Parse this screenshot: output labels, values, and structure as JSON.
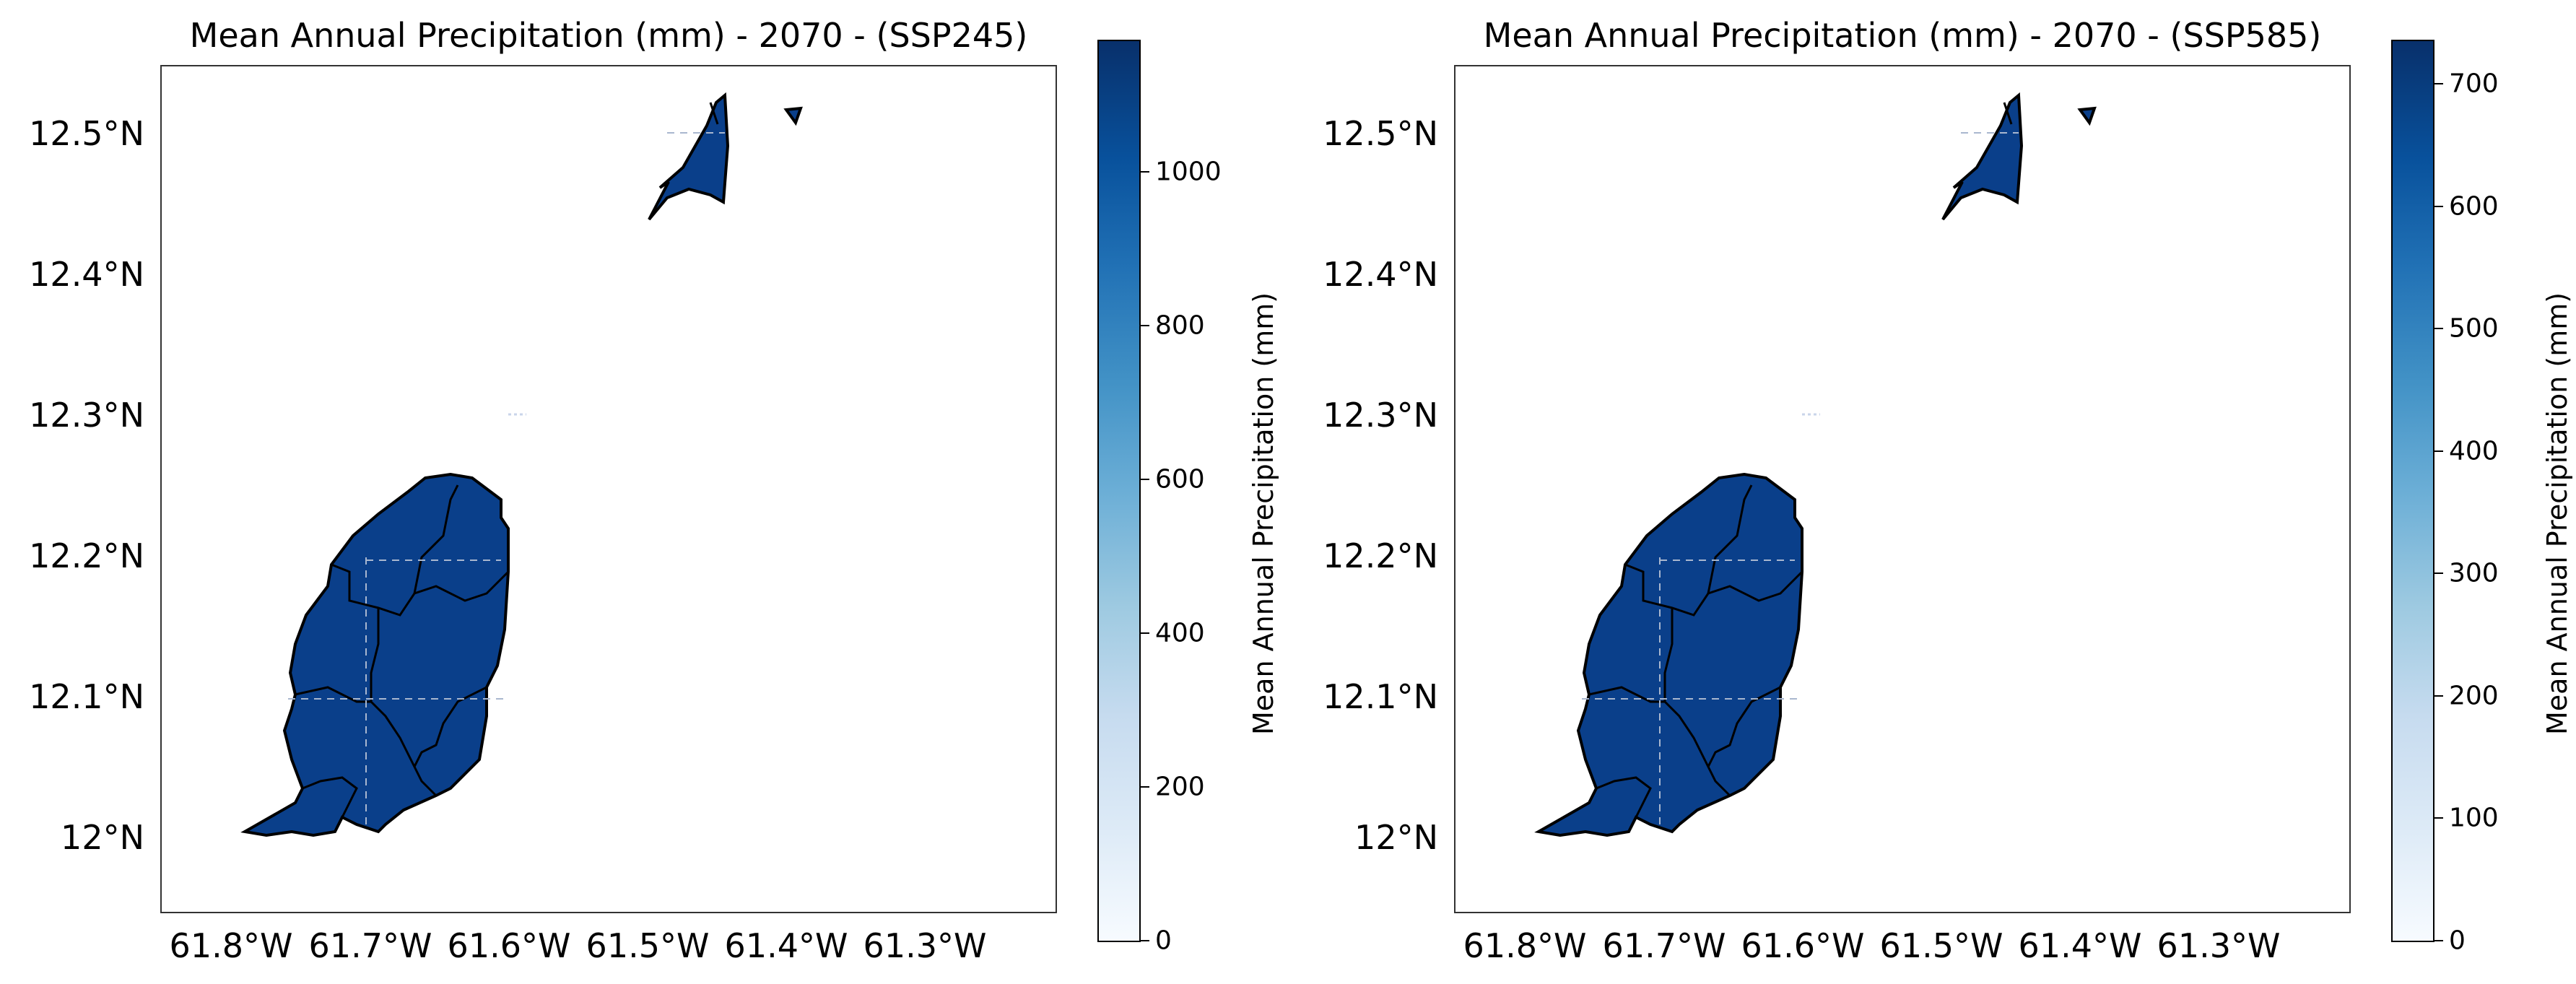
{
  "panels": [
    {
      "title": "Mean Annual Precipitation (mm) - 2070 - (SSP245)",
      "colorbar": {
        "label": "Mean Annual Precipitation (mm)",
        "range": [
          0,
          1170
        ],
        "ticks": [
          "0",
          "200",
          "400",
          "600",
          "800",
          "1000"
        ],
        "tick_values": [
          0,
          200,
          400,
          600,
          800,
          1000
        ],
        "colormap": "Blues"
      },
      "lat_ticks": [
        "12.5°N",
        "12.4°N",
        "12.3°N",
        "12.2°N",
        "12.1°N",
        "12°N"
      ],
      "lon_ticks": [
        "61.8°W",
        "61.7°W",
        "61.6°W",
        "61.5°W",
        "61.4°W",
        "61.3°W"
      ],
      "fill_color": "#0a3f8a"
    },
    {
      "title": "Mean Annual Precipitation (mm) - 2070 - (SSP585)",
      "colorbar": {
        "label": "Mean Annual Precipitation (mm)",
        "range": [
          0,
          735
        ],
        "ticks": [
          "0",
          "100",
          "200",
          "300",
          "400",
          "500",
          "600",
          "700"
        ],
        "tick_values": [
          0,
          100,
          200,
          300,
          400,
          500,
          600,
          700
        ],
        "colormap": "Blues"
      },
      "lat_ticks": [
        "12.5°N",
        "12.4°N",
        "12.3°N",
        "12.2°N",
        "12.1°N",
        "12°N"
      ],
      "lon_ticks": [
        "61.8°W",
        "61.7°W",
        "61.6°W",
        "61.5°W",
        "61.4°W",
        "61.3°W"
      ],
      "fill_color": "#0a3f8a"
    }
  ]
}
